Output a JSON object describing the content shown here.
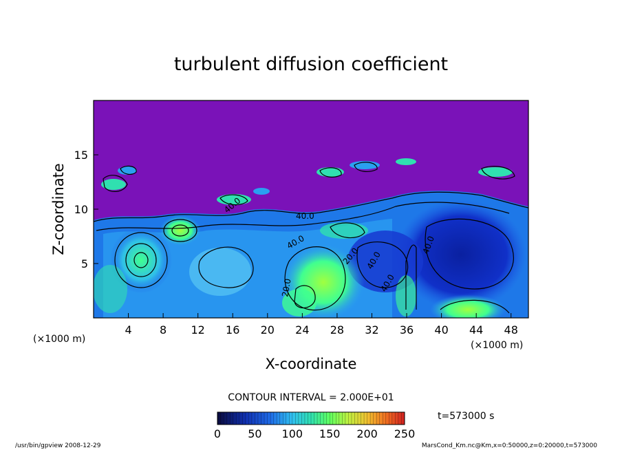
{
  "chart_data": {
    "type": "heatmap",
    "title": "turbulent diffusion coefficient",
    "xlabel": "X-coordinate",
    "ylabel": "Z-coordinate",
    "x_unit_label": "(×1000 m)",
    "y_unit_label": "(×1000 m)",
    "xlim": [
      0,
      50
    ],
    "ylim": [
      0,
      20
    ],
    "x_ticks": [
      "4",
      "8",
      "12",
      "16",
      "20",
      "24",
      "28",
      "32",
      "36",
      "40",
      "44",
      "48"
    ],
    "y_ticks": [
      "5",
      "10",
      "15"
    ],
    "contour_interval": "CONTOUR INTERVAL = 2.000E+01",
    "contour_labels": [
      "40.0",
      "40.0",
      "40.0",
      "40.0",
      "40.0",
      "40.0",
      "20.0",
      "20.0"
    ],
    "time_label": "t=573000  s",
    "colorbar": {
      "min": 0,
      "max": 250,
      "ticks": [
        "0",
        "50",
        "100",
        "150",
        "200",
        "250"
      ]
    },
    "background_value_color": "#7a12b8",
    "colors": [
      "#0a0a3c",
      "#1030b0",
      "#1e5ae6",
      "#2aa0f0",
      "#30e0d8",
      "#40ff90",
      "#a0ff40",
      "#f0e030",
      "#f08020",
      "#e83020"
    ],
    "footer_left": "/usr/bin/gpview   2008-12-29",
    "footer_right": "MarsCond_Km.nc@Km,x=0:50000,z=0:20000,t=573000"
  }
}
